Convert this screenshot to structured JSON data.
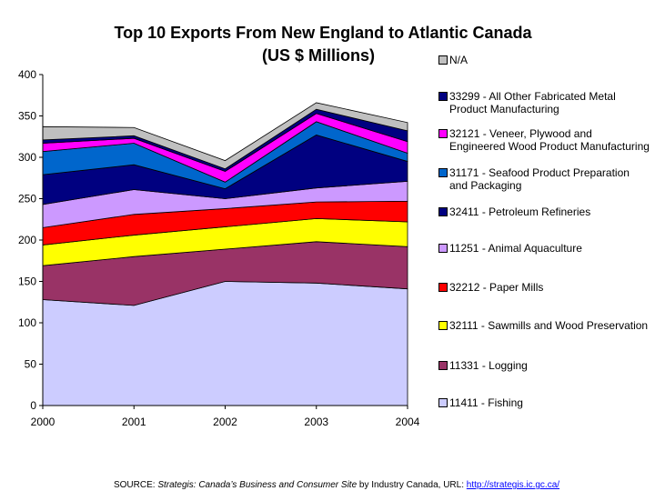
{
  "title_line1": "Top 10 Exports From New England to Atlantic Canada",
  "title_line2": "(US $ Millions)",
  "source": {
    "prefix": "SOURCE: ",
    "publication": "Strategis: Canada’s Business and Consumer Site",
    "middle": " by Industry Canada, URL: ",
    "url": "http://strategis.ic.gc.ca/"
  },
  "chart_data": {
    "type": "area",
    "stacked": true,
    "title": "Top 10 Exports From New England to Atlantic Canada (US $ Millions)",
    "categories": [
      "2000",
      "2001",
      "2002",
      "2003",
      "2004"
    ],
    "ylim": [
      0,
      400
    ],
    "yticks": [
      "0",
      "50",
      "100",
      "150",
      "200",
      "250",
      "300",
      "350",
      "400"
    ],
    "grid": false,
    "legend_position": "right",
    "series": [
      {
        "name": "11411 - Fishing",
        "color": "#ccccff",
        "values": [
          128,
          121,
          150,
          148,
          141
        ]
      },
      {
        "name": "11331 - Logging",
        "color": "#993366",
        "values": [
          41,
          59,
          39,
          50,
          51
        ]
      },
      {
        "name": "32111 - Sawmills and Wood Preservation",
        "color": "#ffff00",
        "values": [
          25,
          26,
          27,
          28,
          30
        ]
      },
      {
        "name": "32212 - Paper Mills",
        "color": "#ff0000",
        "values": [
          21,
          25,
          22,
          20,
          25
        ]
      },
      {
        "name": "11251 - Animal Aquaculture",
        "color": "#cc99ff",
        "values": [
          28,
          30,
          12,
          17,
          24
        ]
      },
      {
        "name": "32411 - Petroleum Refineries",
        "color": "#000080",
        "values": [
          36,
          30,
          12,
          64,
          24
        ]
      },
      {
        "name": "31171 - Seafood Product Preparation and Packaging",
        "color": "#0066cc",
        "values": [
          28,
          26,
          8,
          16,
          10
        ]
      },
      {
        "name": "32121 - Veneer, Plywood and Engineered Wood Product Manufacturing",
        "color": "#ff00ff",
        "values": [
          10,
          6,
          13,
          10,
          14
        ]
      },
      {
        "name": "33299 - All Other Fabricated Metal Product Manufacturing",
        "color": "#000080",
        "values": [
          4,
          3,
          3,
          5,
          13
        ]
      },
      {
        "name": "N/A",
        "color": "#c0c0c0",
        "values": [
          16,
          10,
          10,
          8,
          10
        ]
      }
    ]
  }
}
